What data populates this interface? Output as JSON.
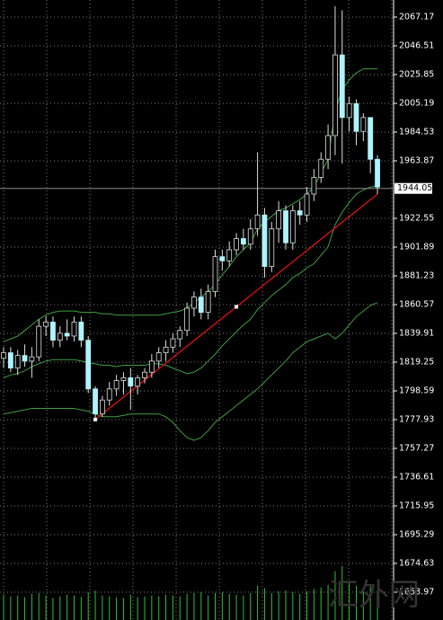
{
  "chart_data": {
    "type": "candlestick",
    "ylim": [
      1633.96,
      2079.44
    ],
    "yticks": [
      2067.17,
      2046.51,
      2025.85,
      2005.19,
      1984.53,
      1963.87,
      1922.55,
      1901.89,
      1881.23,
      1860.57,
      1839.91,
      1819.25,
      1798.59,
      1777.93,
      1757.27,
      1736.61,
      1715.95,
      1695.29,
      1674.63,
      1653.97
    ],
    "grid": true,
    "current_price": 1944.05,
    "up_color": "#000000",
    "down_color": "#aef4ff",
    "wick_color": "#dddddd",
    "band_color": "#3f9e3f",
    "trend_color": "#e01010",
    "volume_color": "#2fbf2f",
    "watermark": "汇外网",
    "open": [
      1822,
      1826,
      1815,
      1824,
      1820,
      1823,
      1845,
      1848,
      1835,
      1840,
      1838,
      1848,
      1835,
      1800,
      1782,
      1792,
      1800,
      1806,
      1808,
      1802,
      1808,
      1812,
      1820,
      1826,
      1830,
      1836,
      1842,
      1858,
      1866,
      1855,
      1870,
      1895,
      1892,
      1900,
      1908,
      1904,
      1915,
      1925,
      1888,
      1915,
      1928,
      1905,
      1928,
      1925,
      1940,
      1952,
      1965,
      1982,
      2040,
      1995,
      2005,
      1985,
      1995,
      1965
    ],
    "high": [
      1830,
      1830,
      1828,
      1832,
      1830,
      1850,
      1852,
      1852,
      1845,
      1850,
      1852,
      1852,
      1838,
      1802,
      1795,
      1805,
      1810,
      1812,
      1815,
      1810,
      1815,
      1825,
      1830,
      1835,
      1840,
      1845,
      1862,
      1870,
      1872,
      1875,
      1900,
      1900,
      1906,
      1912,
      1915,
      1922,
      1970,
      1930,
      1920,
      1935,
      1932,
      1932,
      1935,
      1945,
      1958,
      1970,
      1990,
      2075,
      2072,
      2010,
      2008,
      1998,
      1995,
      1968
    ],
    "low": [
      1815,
      1812,
      1810,
      1816,
      1808,
      1820,
      1838,
      1830,
      1830,
      1835,
      1834,
      1830,
      1797,
      1778,
      1780,
      1788,
      1795,
      1796,
      1785,
      1796,
      1804,
      1808,
      1815,
      1820,
      1826,
      1830,
      1838,
      1852,
      1850,
      1850,
      1866,
      1885,
      1888,
      1896,
      1900,
      1900,
      1910,
      1880,
      1884,
      1905,
      1900,
      1900,
      1918,
      1920,
      1935,
      1948,
      1958,
      1968,
      1962,
      1985,
      1975,
      1978,
      1955,
      1940
    ],
    "close": [
      1826,
      1815,
      1824,
      1820,
      1823,
      1845,
      1848,
      1835,
      1840,
      1838,
      1848,
      1835,
      1800,
      1782,
      1792,
      1800,
      1806,
      1808,
      1802,
      1808,
      1812,
      1820,
      1826,
      1830,
      1836,
      1842,
      1858,
      1866,
      1855,
      1870,
      1895,
      1892,
      1900,
      1908,
      1904,
      1915,
      1925,
      1888,
      1915,
      1928,
      1905,
      1928,
      1925,
      1940,
      1952,
      1965,
      1982,
      2040,
      1995,
      2005,
      1985,
      1995,
      1965,
      1945
    ],
    "upper_band": [
      1834,
      1836,
      1838,
      1842,
      1846,
      1850,
      1853,
      1855,
      1856,
      1856,
      1856,
      1855,
      1855,
      1855,
      1854,
      1854,
      1853,
      1853,
      1853,
      1853,
      1853,
      1853,
      1853,
      1854,
      1855,
      1856,
      1858,
      1862,
      1866,
      1870,
      1875,
      1882,
      1888,
      1895,
      1900,
      1905,
      1915,
      1920,
      1924,
      1928,
      1930,
      1933,
      1936,
      1940,
      1945,
      1955,
      1965,
      2000,
      2015,
      2022,
      2027,
      2030,
      2030,
      2030
    ],
    "middle_band": [
      1808,
      1810,
      1811,
      1813,
      1816,
      1818,
      1820,
      1821,
      1821,
      1821,
      1821,
      1820,
      1819,
      1818,
      1817,
      1817,
      1816,
      1817,
      1817,
      1817,
      1817,
      1818,
      1818,
      1817,
      1815,
      1813,
      1811,
      1812,
      1815,
      1820,
      1825,
      1831,
      1836,
      1841,
      1846,
      1850,
      1857,
      1862,
      1867,
      1871,
      1875,
      1880,
      1883,
      1887,
      1890,
      1896,
      1902,
      1918,
      1927,
      1934,
      1940,
      1943,
      1945,
      1946
    ],
    "lower_band": [
      1782,
      1783,
      1784,
      1785,
      1786,
      1786,
      1786,
      1786,
      1786,
      1786,
      1786,
      1785,
      1784,
      1782,
      1780,
      1780,
      1780,
      1781,
      1782,
      1782,
      1782,
      1782,
      1782,
      1780,
      1776,
      1770,
      1765,
      1763,
      1765,
      1770,
      1776,
      1780,
      1784,
      1788,
      1792,
      1796,
      1800,
      1805,
      1810,
      1815,
      1820,
      1826,
      1830,
      1834,
      1836,
      1838,
      1840,
      1836,
      1840,
      1846,
      1852,
      1856,
      1860,
      1862
    ],
    "trendline": {
      "x": [
        13,
        53
      ],
      "y": [
        1778,
        1940
      ]
    },
    "volumes": [
      3100,
      2900,
      3000,
      2800,
      3200,
      3300,
      3000,
      2700,
      2900,
      3100,
      3000,
      2800,
      3400,
      3600,
      3000,
      2900,
      2800,
      2700,
      3100,
      2800,
      2900,
      3000,
      2900,
      3100,
      3000,
      2900,
      3200,
      3300,
      3400,
      3000,
      3300,
      3400,
      3200,
      3100,
      3000,
      3300,
      4200,
      3900,
      3300,
      3500,
      3600,
      3400,
      3200,
      3500,
      3800,
      4000,
      4300,
      6000,
      6600,
      4800,
      4200,
      3900,
      4100,
      3600
    ]
  }
}
